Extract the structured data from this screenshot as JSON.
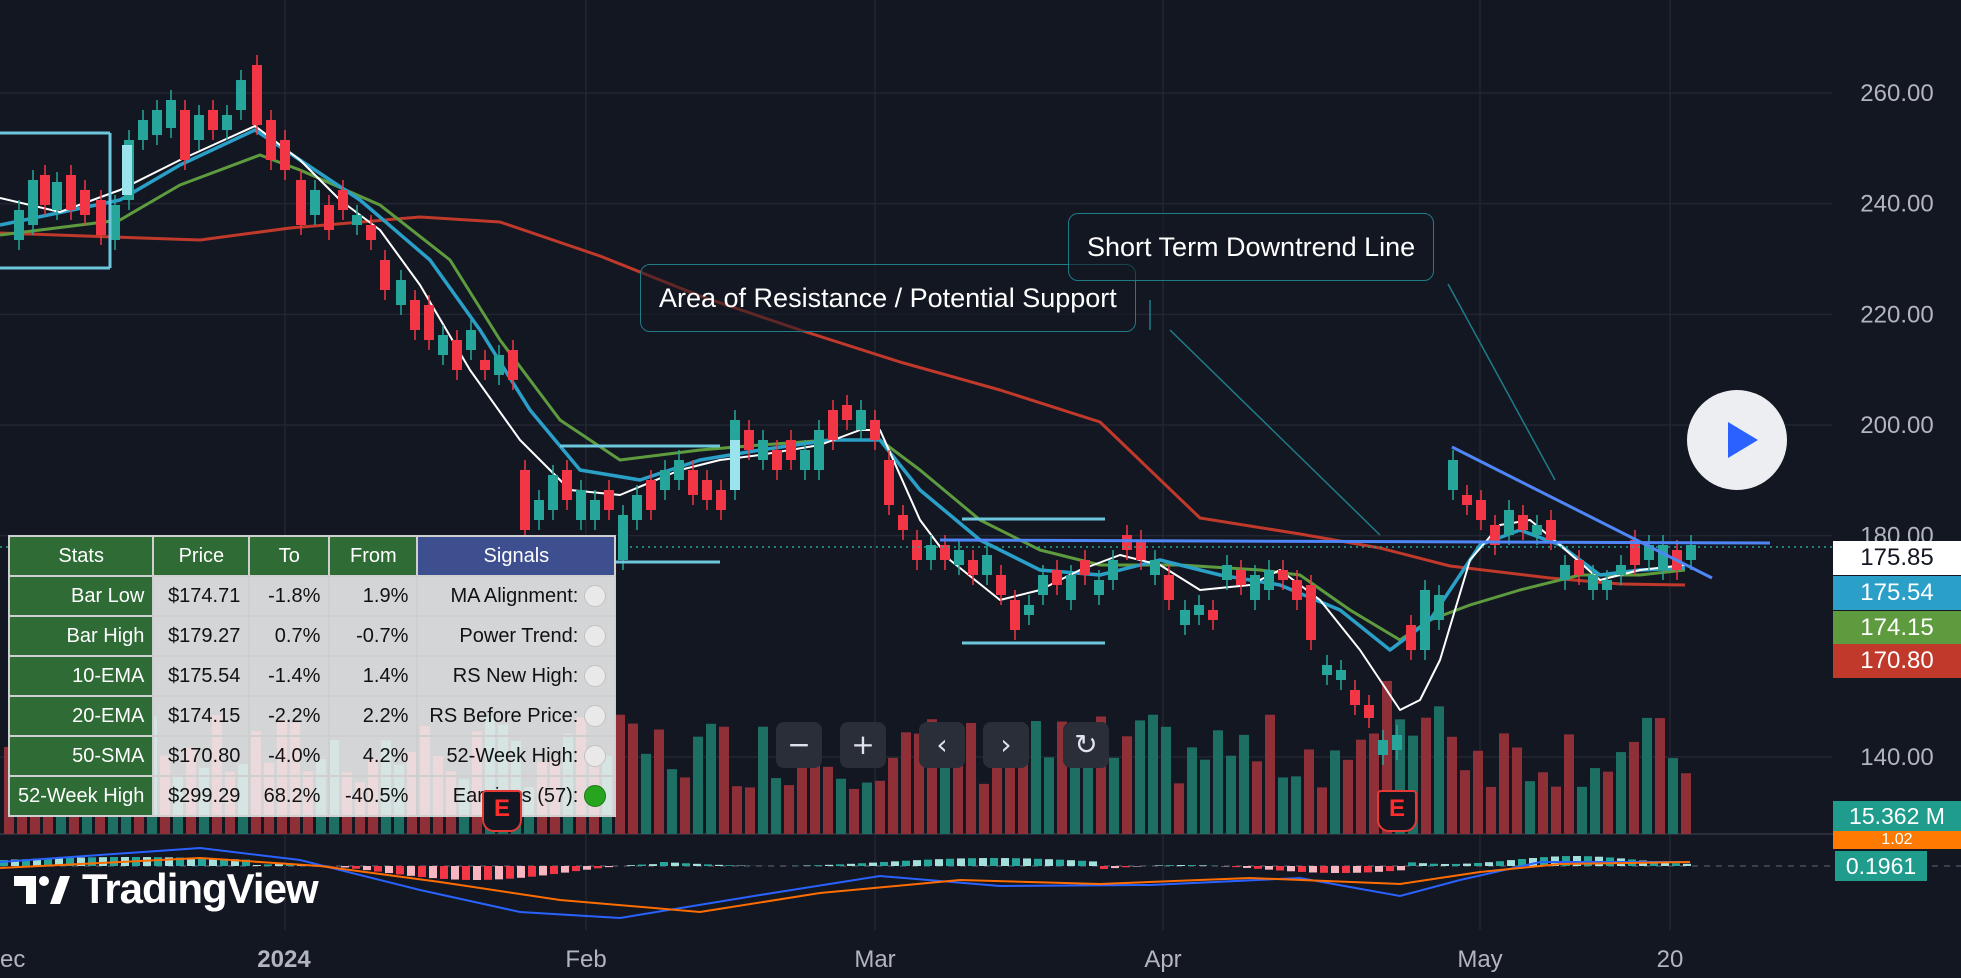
{
  "price_axis": {
    "labels": [
      "260.00",
      "240.00",
      "220.00",
      "200.00",
      "180.00",
      "140.00"
    ]
  },
  "time_axis": {
    "labels": [
      "ec",
      "2024",
      "Feb",
      "Mar",
      "Apr",
      "May",
      "20"
    ]
  },
  "price_tags": {
    "last": "175.85",
    "ema10": "175.54",
    "ema20": "174.15",
    "sma50": "170.80",
    "volume": "15.362 M",
    "hist_hidden": "1.02",
    "macd": "0.1961"
  },
  "colors": {
    "background": "#131722",
    "up": "#26a69a",
    "down": "#f23645",
    "ema10": "#2aa0c8",
    "ema20": "#5e9b3f",
    "sma50": "#c0392b",
    "trendline": "#4f86f7",
    "callout_border": "#1f7c87"
  },
  "callouts": {
    "resistance": "Area of Resistance / Potential Support",
    "downtrend": "Short Term Downtrend Line"
  },
  "stats_table": {
    "headers": [
      "Stats",
      "Price",
      "To",
      "From",
      "Signals"
    ],
    "rows": [
      {
        "label": "Bar Low",
        "price": "$174.71",
        "to": "-1.8%",
        "from": "1.9%",
        "signal": "MA Alignment:",
        "on": false
      },
      {
        "label": "Bar High",
        "price": "$179.27",
        "to": "0.7%",
        "from": "-0.7%",
        "signal": "Power Trend:",
        "on": false
      },
      {
        "label": "10-EMA",
        "price": "$175.54",
        "to": "-1.4%",
        "from": "1.4%",
        "signal": "RS New High:",
        "on": false
      },
      {
        "label": "20-EMA",
        "price": "$174.15",
        "to": "-2.2%",
        "from": "2.2%",
        "signal": "RS Before Price:",
        "on": false
      },
      {
        "label": "50-SMA",
        "price": "$170.80",
        "to": "-4.0%",
        "from": "4.2%",
        "signal": "52-Week High:",
        "on": false
      },
      {
        "label": "52-Week High",
        "price": "$299.29",
        "to": "68.2%",
        "from": "-40.5%",
        "signal": "Earnings (57):",
        "on": true
      }
    ]
  },
  "earnings_badge": "E",
  "nav_buttons": [
    {
      "name": "zoom-out-button",
      "glyph": "−"
    },
    {
      "name": "zoom-in-button",
      "glyph": "+"
    },
    {
      "name": "scroll-left-button",
      "glyph": "‹"
    },
    {
      "name": "scroll-right-button",
      "glyph": "›"
    },
    {
      "name": "reset-chart-button",
      "glyph": "↻"
    }
  ],
  "logo_text": "TradingView"
}
